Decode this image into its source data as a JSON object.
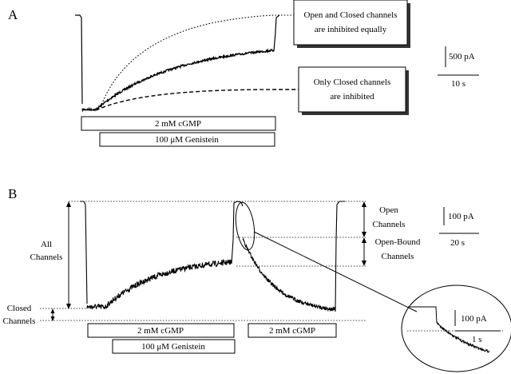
{
  "panel_a": {
    "label": "A",
    "callout_top": {
      "line1": "Open and Closed channels",
      "line2": "are inhibited equally"
    },
    "callout_bottom": {
      "line1": "Only Closed channels",
      "line2": "are inhibited"
    },
    "bars": {
      "cgmp": "2 mM cGMP",
      "genistein": "100 μM Genistein"
    },
    "scale": {
      "current": "500 pA",
      "time": "10 s"
    }
  },
  "panel_b": {
    "label": "B",
    "all_channels": {
      "line1": "All",
      "line2": "Channels"
    },
    "closed_channels": {
      "line1": "Closed",
      "line2": "Channels"
    },
    "open_channels": {
      "line1": "Open",
      "line2": "Channels"
    },
    "open_bound_channels": {
      "line1": "Open-Bound",
      "line2": "Channels"
    },
    "bars": {
      "cgmp_first": "2 mM cGMP",
      "genistein": "100 μM Genistein",
      "cgmp_second": "2 mM cGMP"
    },
    "scale": {
      "current": "100 pA",
      "time": "20 s"
    },
    "inset_scale": {
      "current": "100 pA",
      "time": "1 s"
    }
  }
}
